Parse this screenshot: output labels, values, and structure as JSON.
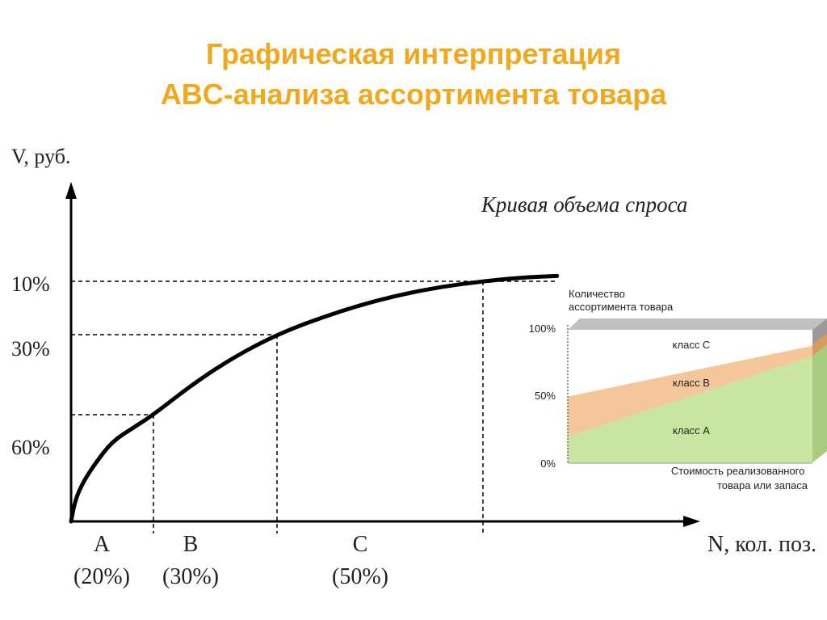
{
  "title": {
    "line1": "Графическая интерпретация",
    "line2": "ABC-анализа ассортимента товара"
  },
  "colors": {
    "title": "#f0a81c",
    "curve": "#000000",
    "class_a": "#c8e6a0",
    "class_b": "#f4c79a",
    "class_c": "#ffffff",
    "box_top": "#c0c0c0"
  },
  "chart_data": [
    {
      "type": "line",
      "ylabel": "V, руб.",
      "xlabel": "N, кол. поз.",
      "curve_label": "Кривая объема спроса",
      "y_ticks": [
        "10%",
        "30%",
        "60%"
      ],
      "x_segments": [
        {
          "class": "A",
          "share": "(20%)",
          "from": 0,
          "to": 20
        },
        {
          "class": "B",
          "share": "(30%)",
          "from": 20,
          "to": 50
        },
        {
          "class": "C",
          "share": "(50%)",
          "from": 50,
          "to": 100
        }
      ],
      "reference_points": [
        {
          "x": 20,
          "y": 40
        },
        {
          "x": 50,
          "y": 70
        },
        {
          "x": 100,
          "y": 90
        }
      ],
      "xlim": [
        0,
        125
      ],
      "ylim": [
        0,
        100
      ],
      "curve_points": [
        [
          0,
          0
        ],
        [
          1,
          8
        ],
        [
          3,
          15
        ],
        [
          6,
          22
        ],
        [
          10,
          30
        ],
        [
          15,
          35
        ],
        [
          20,
          40
        ],
        [
          30,
          52
        ],
        [
          40,
          62
        ],
        [
          50,
          70
        ],
        [
          60,
          76
        ],
        [
          70,
          81
        ],
        [
          80,
          85
        ],
        [
          90,
          88
        ],
        [
          100,
          90
        ],
        [
          110,
          91.5
        ],
        [
          118,
          92
        ]
      ]
    },
    {
      "type": "area",
      "ylabel": "Количество ассортимента товара",
      "xlabel": "Стоимость реализованного товара или запаса",
      "y_ticks": [
        "100%",
        "50%",
        "0%"
      ],
      "ylim": [
        0,
        100
      ],
      "xlim": [
        0,
        100
      ],
      "series": [
        {
          "name": "класс A",
          "start": 20,
          "end": 80
        },
        {
          "name": "класс B",
          "start": 50,
          "end": 88
        },
        {
          "name": "класс C",
          "start": 100,
          "end": 100
        }
      ]
    }
  ]
}
